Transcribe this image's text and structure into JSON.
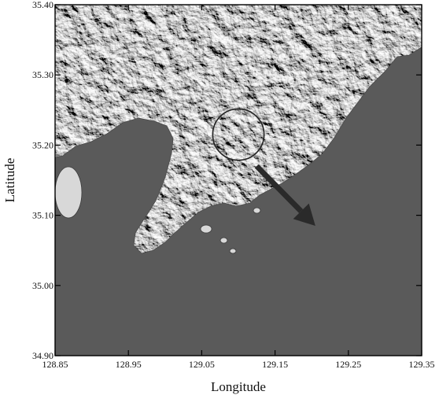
{
  "map": {
    "x_axis": {
      "title": "Longitude",
      "range": [
        128.85,
        129.35
      ],
      "ticks": [
        128.85,
        128.95,
        129.05,
        129.15,
        129.25,
        129.35
      ],
      "tick_labels": [
        "128.85",
        "128.95",
        "129.05",
        "129.15",
        "129.25",
        "129.35"
      ]
    },
    "y_axis": {
      "title": "Latitude",
      "range": [
        34.9,
        35.4
      ],
      "ticks": [
        34.9,
        35.0,
        35.1,
        35.2,
        35.3,
        35.4
      ],
      "tick_labels": [
        "34.90",
        "35.00",
        "35.10",
        "35.20",
        "35.30",
        "35.40"
      ]
    },
    "annotations": {
      "circle_center": {
        "lon": 129.1,
        "lat": 35.215
      },
      "circle_radius_deg": 0.035,
      "arrow_start": {
        "lon": 129.125,
        "lat": 35.17
      },
      "arrow_end": {
        "lon": 129.205,
        "lat": 35.085
      }
    },
    "colors": {
      "sea": "#8c8c8c",
      "land_light": "#d8d8d8",
      "land_dark": "#3a3a3a",
      "frame": "#000000",
      "arrow": "#2a2a2a"
    }
  }
}
